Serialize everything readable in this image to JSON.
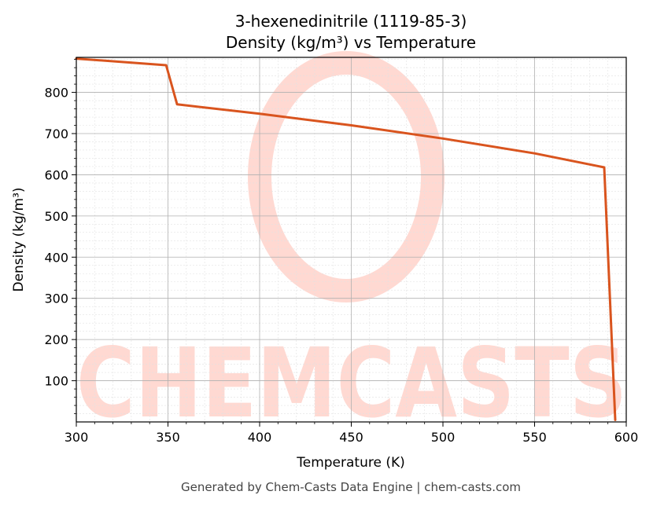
{
  "chart_data": {
    "type": "line",
    "title": "3-hexenedinitrile (1119-85-3)",
    "subtitle": "Density (kg/m³) vs Temperature",
    "xlabel": "Temperature (K)",
    "ylabel": "Density (kg/m³)",
    "xlim": [
      300,
      600
    ],
    "ylim": [
      0,
      885
    ],
    "x_ticks": [
      300,
      350,
      400,
      450,
      500,
      550,
      600
    ],
    "y_ticks": [
      100,
      200,
      300,
      400,
      500,
      600,
      700,
      800
    ],
    "grid": true,
    "line_color": "#d9541e",
    "series": [
      {
        "x": [
          300,
          349,
          355,
          400,
          450,
          500,
          550,
          588,
          594
        ],
        "y": [
          882,
          866,
          771,
          748,
          720,
          688,
          652,
          618,
          5
        ]
      }
    ]
  },
  "watermark": {
    "text": "CHEMCASTS",
    "color": "#ffd9d2"
  },
  "footer": "Generated by Chem-Casts Data Engine | chem-casts.com"
}
